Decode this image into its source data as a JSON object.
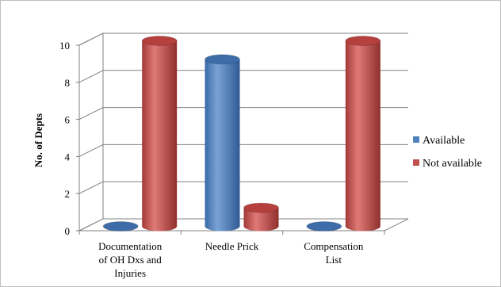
{
  "chart_data": {
    "type": "bar",
    "style": "3d-cylinder",
    "categories": [
      [
        "Documentation",
        "of OH Dxs and",
        "Injuries"
      ],
      [
        "Needle Prick"
      ],
      [
        "Compensation",
        "List"
      ]
    ],
    "series": [
      {
        "name": "Available",
        "values": [
          0,
          9,
          0
        ],
        "color": "#4f81bd"
      },
      {
        "name": "Not available",
        "values": [
          10,
          1,
          10
        ],
        "color": "#c0504d"
      }
    ],
    "title": "",
    "xlabel": "",
    "ylabel": "No. of Depts",
    "ylim": [
      0,
      10
    ],
    "yticks": [
      0,
      2,
      4,
      6,
      8,
      10
    ],
    "grid": true,
    "legend": "right"
  }
}
